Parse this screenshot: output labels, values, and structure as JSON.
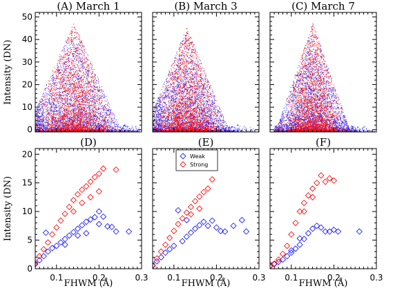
{
  "colors": {
    "weak": "#2020ff",
    "strong": "#ff1010",
    "axis": "#000000"
  },
  "chart_data": [
    {
      "type": "scatter",
      "title": "(A) March 1",
      "xlabel": "",
      "ylabel": "Intensity (DN)",
      "xlim": [
        0.05,
        0.3
      ],
      "ylim": [
        -1,
        52
      ],
      "xticks": [],
      "yticks": [
        0,
        10,
        20,
        30,
        40,
        50
      ],
      "ytick_labels": [
        "0",
        "10",
        "20",
        "30",
        "40",
        "50"
      ],
      "cloud": {
        "xmin": 0.05,
        "peak_x": 0.14,
        "spread": 0.045,
        "ymax": 48
      },
      "series": [
        {
          "key": "weak",
          "values": [
            [
              0.06,
              0.5
            ],
            [
              0.07,
              1.5
            ],
            [
              0.09,
              3
            ],
            [
              0.11,
              4
            ],
            [
              0.13,
              5
            ],
            [
              0.15,
              6
            ],
            [
              0.17,
              7
            ],
            [
              0.19,
              6
            ],
            [
              0.22,
              4
            ],
            [
              0.26,
              2
            ]
          ]
        },
        {
          "key": "strong",
          "values": [
            [
              0.06,
              0.8
            ],
            [
              0.08,
              2
            ],
            [
              0.1,
              4
            ],
            [
              0.12,
              6
            ],
            [
              0.14,
              8
            ],
            [
              0.15,
              10
            ],
            [
              0.16,
              9
            ],
            [
              0.18,
              7
            ],
            [
              0.2,
              5
            ]
          ]
        }
      ]
    },
    {
      "type": "scatter",
      "title": "(B) March 3",
      "xlabel": "",
      "ylabel": "",
      "xlim": [
        0.05,
        0.3
      ],
      "ylim": [
        -1,
        52
      ],
      "xticks": [],
      "yticks": [
        0,
        10,
        20,
        30,
        40,
        50
      ],
      "ytick_labels": [],
      "cloud": {
        "xmin": 0.05,
        "peak_x": 0.13,
        "spread": 0.04,
        "ymax": 46
      },
      "series": [
        {
          "key": "weak",
          "values": [
            [
              0.06,
              0.5
            ],
            [
              0.08,
              2
            ],
            [
              0.1,
              3
            ],
            [
              0.12,
              4
            ],
            [
              0.14,
              6
            ],
            [
              0.16,
              7
            ],
            [
              0.18,
              6
            ],
            [
              0.21,
              4
            ],
            [
              0.25,
              2
            ]
          ]
        },
        {
          "key": "strong",
          "values": [
            [
              0.06,
              0.6
            ],
            [
              0.08,
              2
            ],
            [
              0.1,
              4
            ],
            [
              0.12,
              6
            ],
            [
              0.13,
              8
            ],
            [
              0.14,
              7
            ],
            [
              0.16,
              6
            ],
            [
              0.18,
              4
            ]
          ]
        }
      ]
    },
    {
      "type": "scatter",
      "title": "(C) March 7",
      "xlabel": "",
      "ylabel": "",
      "xlim": [
        0.05,
        0.3
      ],
      "ylim": [
        -1,
        52
      ],
      "xticks": [],
      "yticks": [
        0,
        10,
        20,
        30,
        40,
        50
      ],
      "ytick_labels": [],
      "cloud": {
        "xmin": 0.06,
        "peak_x": 0.15,
        "spread": 0.035,
        "ymax": 48
      },
      "series": [
        {
          "key": "weak",
          "values": [
            [
              0.07,
              0.5
            ],
            [
              0.09,
              1.5
            ],
            [
              0.11,
              2.5
            ],
            [
              0.13,
              4
            ],
            [
              0.15,
              5
            ],
            [
              0.17,
              6
            ],
            [
              0.19,
              4
            ],
            [
              0.22,
              3
            ]
          ]
        },
        {
          "key": "strong",
          "values": [
            [
              0.07,
              0.6
            ],
            [
              0.09,
              2
            ],
            [
              0.11,
              4
            ],
            [
              0.13,
              7
            ],
            [
              0.15,
              10
            ],
            [
              0.17,
              12
            ],
            [
              0.19,
              8
            ]
          ]
        }
      ]
    },
    {
      "type": "scatter",
      "title": "(D)",
      "xlabel": "FHWM (Å)",
      "ylabel": "Intensity (DN)",
      "xlim": [
        0.05,
        0.3
      ],
      "ylim": [
        0,
        21
      ],
      "xticks": [
        0.1,
        0.2,
        0.3
      ],
      "xtick_labels": [
        "0.1",
        "0.2",
        "0.3"
      ],
      "yticks": [
        0,
        5,
        10,
        15,
        20
      ],
      "ytick_labels": [
        "0",
        "5",
        "10",
        "15",
        "20"
      ],
      "series": [
        {
          "key": "weak",
          "values": [
            [
              0.05,
              0.8
            ],
            [
              0.06,
              1.5
            ],
            [
              0.07,
              2.2
            ],
            [
              0.075,
              6.3
            ],
            [
              0.08,
              3
            ],
            [
              0.09,
              3.6
            ],
            [
              0.1,
              4
            ],
            [
              0.11,
              4.6
            ],
            [
              0.12,
              5.2
            ],
            [
              0.13,
              5.8
            ],
            [
              0.14,
              6.4
            ],
            [
              0.15,
              7
            ],
            [
              0.16,
              7.6
            ],
            [
              0.17,
              8.2
            ],
            [
              0.18,
              8.6
            ],
            [
              0.19,
              9
            ],
            [
              0.2,
              10
            ],
            [
              0.2,
              7.8
            ],
            [
              0.21,
              9.1
            ],
            [
              0.22,
              7.4
            ],
            [
              0.23,
              7.3
            ],
            [
              0.24,
              6.5
            ],
            [
              0.27,
              6.5
            ],
            [
              0.15,
              5.8
            ],
            [
              0.17,
              6.2
            ],
            [
              0.12,
              4.2
            ]
          ]
        },
        {
          "key": "strong",
          "values": [
            [
              0.05,
              1
            ],
            [
              0.06,
              2.2
            ],
            [
              0.07,
              3.4
            ],
            [
              0.08,
              4.6
            ],
            [
              0.09,
              6
            ],
            [
              0.1,
              7.2
            ],
            [
              0.11,
              8.4
            ],
            [
              0.12,
              9.6
            ],
            [
              0.13,
              10.8
            ],
            [
              0.14,
              12
            ],
            [
              0.15,
              13
            ],
            [
              0.16,
              13.8
            ],
            [
              0.17,
              14.4
            ],
            [
              0.18,
              15.2
            ],
            [
              0.19,
              16
            ],
            [
              0.2,
              16.6
            ],
            [
              0.21,
              17.5
            ],
            [
              0.24,
              17.3
            ],
            [
              0.14,
              10
            ],
            [
              0.16,
              11.5
            ],
            [
              0.18,
              12.5
            ],
            [
              0.2,
              13.5
            ]
          ]
        }
      ]
    },
    {
      "type": "scatter",
      "title": "(E)",
      "xlabel": "FHWM (Å)",
      "ylabel": "",
      "xlim": [
        0.05,
        0.3
      ],
      "ylim": [
        0,
        21
      ],
      "xticks": [
        0.1,
        0.2,
        0.3
      ],
      "xtick_labels": [
        "0.1",
        "0.2",
        "0.3"
      ],
      "yticks": [
        0,
        5,
        10,
        15,
        20
      ],
      "ytick_labels": [],
      "legend": {
        "position": "top-left",
        "entries": [
          {
            "key": "weak",
            "label": "Weak"
          },
          {
            "key": "strong",
            "label": "Strong"
          }
        ]
      },
      "series": [
        {
          "key": "weak",
          "values": [
            [
              0.05,
              0.5
            ],
            [
              0.06,
              1.3
            ],
            [
              0.07,
              2
            ],
            [
              0.08,
              2.8
            ],
            [
              0.09,
              3.4
            ],
            [
              0.1,
              4
            ],
            [
              0.11,
              10.2
            ],
            [
              0.12,
              4.8
            ],
            [
              0.13,
              5.6
            ],
            [
              0.14,
              6.3
            ],
            [
              0.15,
              7
            ],
            [
              0.16,
              7.6
            ],
            [
              0.17,
              8.2
            ],
            [
              0.18,
              7.5
            ],
            [
              0.19,
              8.4
            ],
            [
              0.2,
              7.2
            ],
            [
              0.21,
              6.6
            ],
            [
              0.22,
              6.5
            ],
            [
              0.24,
              7.5
            ],
            [
              0.26,
              8.5
            ],
            [
              0.27,
              6.5
            ],
            [
              0.13,
              8.5
            ]
          ]
        },
        {
          "key": "strong",
          "values": [
            [
              0.05,
              0.6
            ],
            [
              0.06,
              1.8
            ],
            [
              0.07,
              3
            ],
            [
              0.08,
              4.2
            ],
            [
              0.09,
              5.4
            ],
            [
              0.1,
              6.6
            ],
            [
              0.11,
              7.8
            ],
            [
              0.12,
              8.8
            ],
            [
              0.13,
              9.8
            ],
            [
              0.14,
              10.8
            ],
            [
              0.15,
              11.8
            ],
            [
              0.16,
              12.6
            ],
            [
              0.17,
              13.4
            ],
            [
              0.18,
              14
            ],
            [
              0.19,
              15.6
            ],
            [
              0.14,
              9.5
            ],
            [
              0.16,
              10.5
            ]
          ]
        }
      ]
    },
    {
      "type": "scatter",
      "title": "(F)",
      "xlabel": "FHWM (Å)",
      "ylabel": "",
      "xlim": [
        0.05,
        0.3
      ],
      "ylim": [
        0,
        21
      ],
      "xticks": [
        0.1,
        0.2,
        0.3
      ],
      "xtick_labels": [
        "0.1",
        "0.2",
        "0.3"
      ],
      "yticks": [
        0,
        5,
        10,
        15,
        20
      ],
      "ytick_labels": [],
      "series": [
        {
          "key": "weak",
          "values": [
            [
              0.05,
              0.5
            ],
            [
              0.06,
              0.8
            ],
            [
              0.07,
              1.2
            ],
            [
              0.08,
              1.6
            ],
            [
              0.09,
              2.2
            ],
            [
              0.1,
              2.8
            ],
            [
              0.11,
              3.5
            ],
            [
              0.12,
              4.2
            ],
            [
              0.13,
              5.2
            ],
            [
              0.14,
              6.2
            ],
            [
              0.15,
              7
            ],
            [
              0.16,
              7.5
            ],
            [
              0.17,
              7.2
            ],
            [
              0.18,
              6.5
            ],
            [
              0.19,
              6.5
            ],
            [
              0.2,
              6.8
            ],
            [
              0.21,
              6.5
            ],
            [
              0.26,
              6.5
            ],
            [
              0.12,
              5.3
            ],
            [
              0.1,
              3.2
            ]
          ]
        },
        {
          "key": "strong",
          "values": [
            [
              0.05,
              0.4
            ],
            [
              0.06,
              0.9
            ],
            [
              0.07,
              1.6
            ],
            [
              0.08,
              2.6
            ],
            [
              0.09,
              4
            ],
            [
              0.1,
              6
            ],
            [
              0.11,
              8
            ],
            [
              0.12,
              10
            ],
            [
              0.13,
              11.5
            ],
            [
              0.14,
              12.8
            ],
            [
              0.15,
              14
            ],
            [
              0.16,
              15
            ],
            [
              0.17,
              16.3
            ],
            [
              0.18,
              15.2
            ],
            [
              0.19,
              15.8
            ],
            [
              0.2,
              15.4
            ],
            [
              0.15,
              12.5
            ],
            [
              0.13,
              10
            ]
          ]
        }
      ]
    }
  ]
}
